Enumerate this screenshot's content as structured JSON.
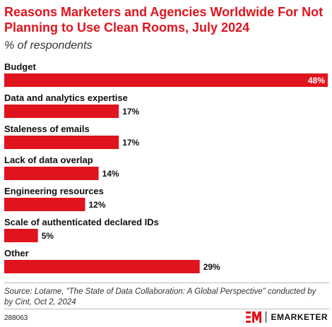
{
  "header": {
    "title": "Reasons Marketers and Agencies Worldwide For Not Planning to Use Clean Rooms, July 2024",
    "subtitle": "% of respondents"
  },
  "chart_data": {
    "type": "bar",
    "orientation": "horizontal",
    "categories": [
      "Budget",
      "Data and analytics expertise",
      "Staleness of emails",
      "Lack of data overlap",
      "Engineering resources",
      "Scale of authenticated declared IDs",
      "Other"
    ],
    "values": [
      48,
      17,
      17,
      14,
      12,
      5,
      29
    ],
    "value_labels": [
      "48%",
      "17%",
      "17%",
      "14%",
      "12%",
      "5%",
      "29%"
    ],
    "xlim": [
      0,
      48
    ],
    "bar_color": "#e0141e",
    "grid": false
  },
  "footer": {
    "source": "Source: Lotame, \"The State of Data Collaboration: A Global Perspective\" conducted by by Cint, Oct 2, 2024",
    "chart_id": "288063",
    "brand": "EMARKETER"
  },
  "colors": {
    "accent": "#e0141e"
  }
}
